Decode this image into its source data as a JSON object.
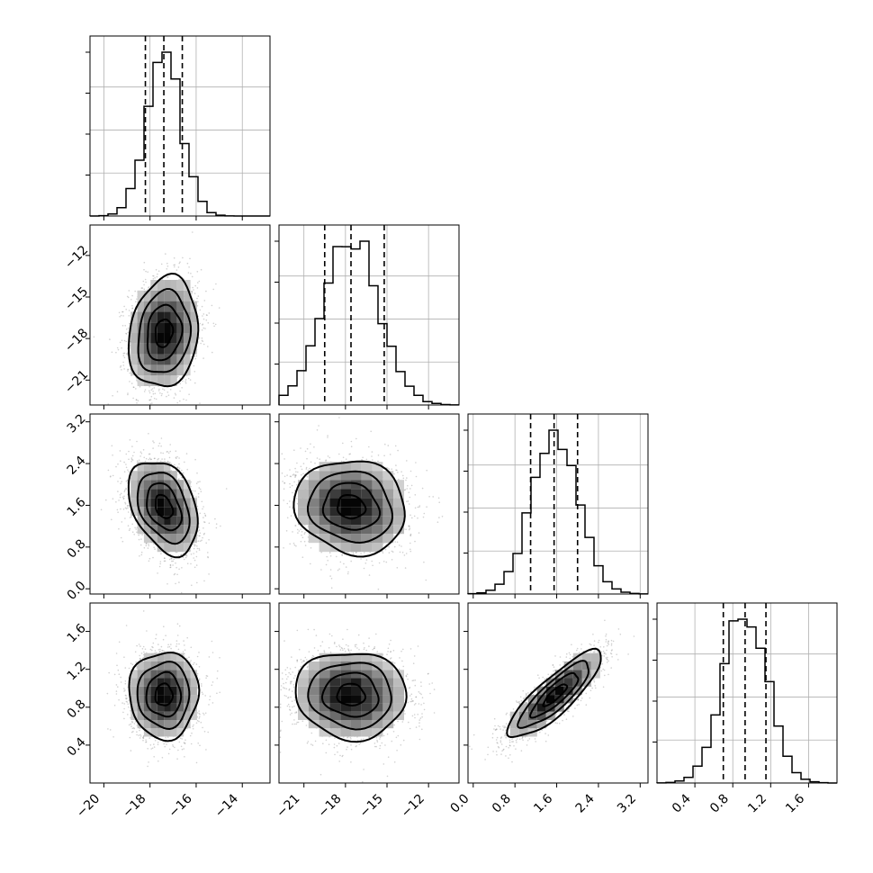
{
  "chart_data": {
    "type": "corner",
    "parameters": [
      {
        "range": [
          -20.6,
          -12.8
        ],
        "ticks": [
          -20,
          -18,
          -16,
          -14
        ],
        "tick_labels": [
          "−20",
          "−18",
          "−16",
          "−14"
        ],
        "mean": -17.4,
        "sigma": 0.75,
        "quantiles": [
          -18.2,
          -17.4,
          -16.6
        ]
      },
      {
        "range": [
          -22.8,
          -9.8
        ],
        "ticks": [
          -21,
          -18,
          -15,
          -12
        ],
        "tick_labels": [
          "−21",
          "−18",
          "−15",
          "−12"
        ],
        "mean": -17.6,
        "sigma": 2.0,
        "quantiles": [
          -19.5,
          -17.6,
          -15.2
        ]
      },
      {
        "range": [
          -0.1,
          3.35
        ],
        "ticks": [
          0.0,
          0.8,
          1.6,
          2.4,
          3.2
        ],
        "tick_labels": [
          "0.0",
          "0.8",
          "1.6",
          "2.4",
          "3.2"
        ],
        "mean": 1.57,
        "sigma": 0.45,
        "quantiles": [
          1.1,
          1.55,
          2.0
        ]
      },
      {
        "range": [
          0.0,
          1.9
        ],
        "ticks": [
          0.4,
          0.8,
          1.2,
          1.6
        ],
        "tick_labels": [
          "0.4",
          "0.8",
          "1.2",
          "1.6"
        ],
        "mean": 0.93,
        "sigma": 0.23,
        "quantiles": [
          0.7,
          0.93,
          1.15
        ]
      }
    ],
    "correlations": [
      [
        1,
        0.15,
        -0.35,
        0.0
      ],
      [
        0.15,
        1,
        -0.1,
        -0.05
      ],
      [
        -0.35,
        -0.1,
        1,
        0.85
      ],
      [
        0.0,
        -0.05,
        0.85,
        1
      ]
    ],
    "grid": true,
    "samples_per_panel": 2200,
    "histogram_bins": 20,
    "contour_levels": [
      0.5,
      1.0,
      1.5,
      2.0
    ]
  }
}
